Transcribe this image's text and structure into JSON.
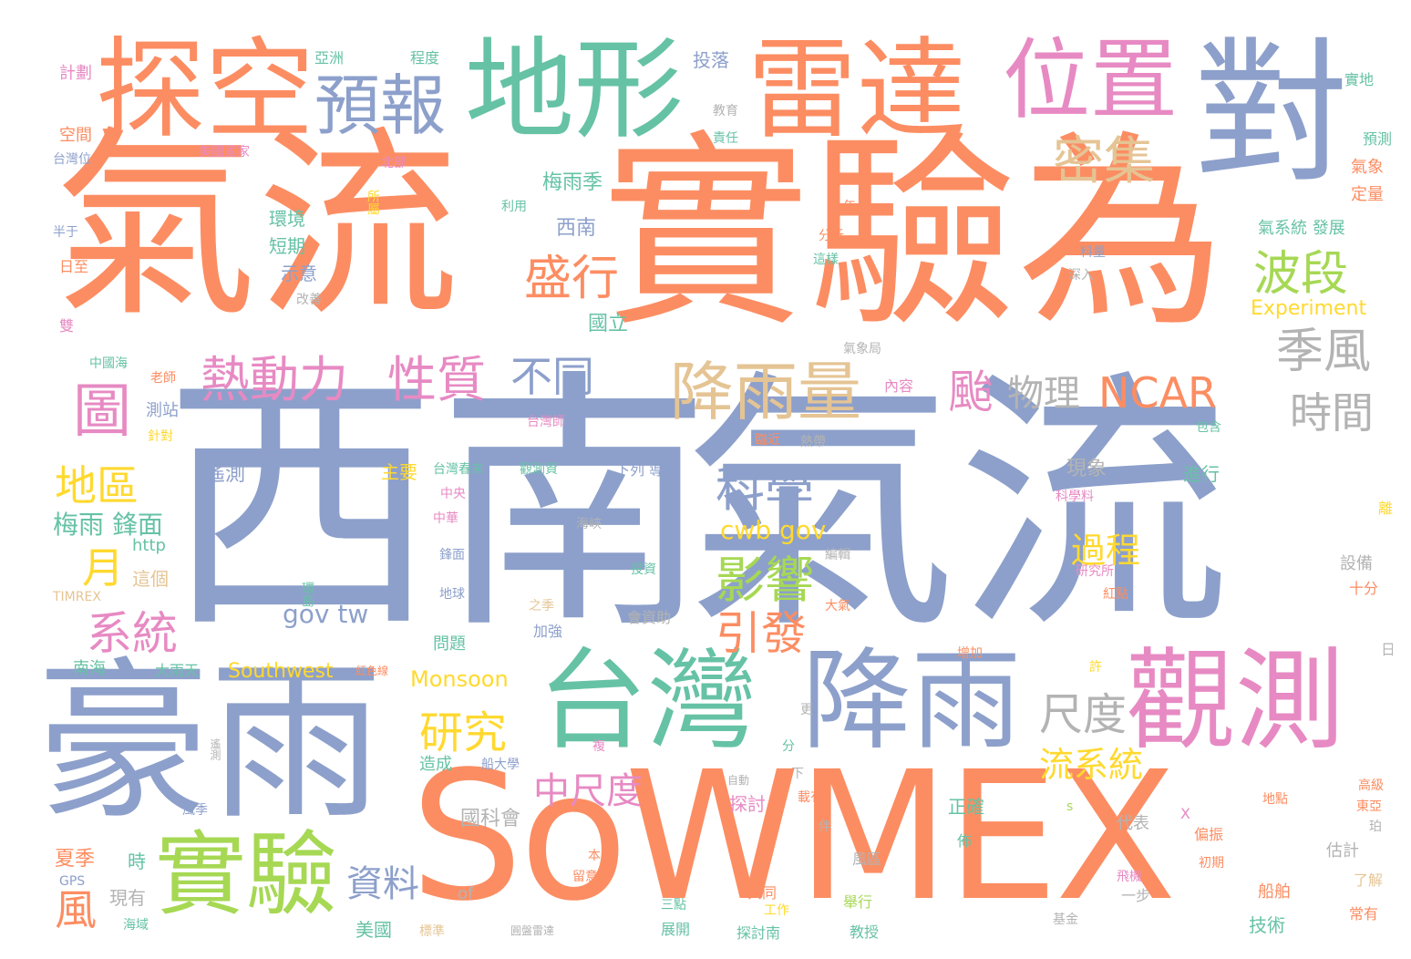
{
  "palette": {
    "orange": "#fc8d62",
    "blue": "#8da0cb",
    "green": "#66c2a5",
    "pink": "#e78ac3",
    "lime": "#a6d854",
    "yellow": "#ffd92f",
    "tan": "#e5c494",
    "gray": "#b3b3b3"
  },
  "words": {
    "xinan": "西南",
    "qiliu_big": "氣流",
    "qiliu_top": "氣流",
    "shiyan_wei": "實驗為",
    "sowmex": "SoWMEX",
    "haoyu": "豪雨",
    "taiwan": "台灣",
    "jiangyu": "降雨",
    "guance": "觀測",
    "tankong": "探空",
    "dixing": "地形",
    "leida": "雷達",
    "weizhi": "位置",
    "dui": "對",
    "yubao": "預報",
    "miji": "密集",
    "shiyan": "實驗",
    "jiangyuliang": "降雨量",
    "redongli": "熱動力",
    "xingzhi": "性質",
    "butong": "不同",
    "shengxing": "盛行",
    "boduan": "波段",
    "jifeng": "季風",
    "tu": "圖",
    "tai": "颱",
    "wuli": "物理",
    "ncar": "NCAR",
    "shijian": "時間",
    "kexue": "科學",
    "diqu": "地區",
    "yue": "月",
    "xitong": "系統",
    "yingxiang": "影響",
    "yinfa": "引發",
    "yanjiu": "研究",
    "chidu": "尺度",
    "zhongchidu": "中尺度",
    "liuxitong": "流系統",
    "guocheng": "過程",
    "cwb_gov": "cwb gov",
    "gov_tw": "gov tw",
    "feng": "風",
    "ziliao": "資料",
    "meiyu_fengmian": "梅雨 鋒面",
    "meiyuji": "梅雨季",
    "xinan_small": "西南",
    "yaoce": "遙測",
    "zhuyao": "主要",
    "xianxiang": "現象",
    "jinxing": "進行",
    "southwest": "Southwest",
    "monsoon": "Monsoon",
    "experiment": "Experiment",
    "guokehui": "國科會",
    "zhengque": "正確",
    "tantao": "探討",
    "xiaji": "夏季",
    "meiguo": "美國",
    "jishu": "技術",
    "huanjing": "環境",
    "duanqi": "短期",
    "shiyi": "示意",
    "qixitong_fazhan": "氣系統 發展",
    "guoli": "國立",
    "jihua": "計劃",
    "yazhou": "亞洲",
    "chengdu": "程度",
    "kongjian": "空間",
    "toulao": "投落",
    "shidi": "實地",
    "yuce": "預測",
    "qixiang": "氣象",
    "dingliang": "定量",
    "ceshan": "測站",
    "nanhai": "南海",
    "dayutian": "大雨天",
    "http": "http",
    "zheige": "這個",
    "timrex": "TIMREX",
    "gps": "GPS",
    "sheбei": "設備",
    "shifen": "十分",
    "guji": "估計",
    "liaojie": "了解",
    "changyou": "常有",
    "chuanbo": "船舶",
    "pianzhen": "偏振",
    "daibiao": "代表",
    "fengqu": "風區",
    "yibu": "一步",
    "of": "of",
    "xianyou": "現有",
    "shi": "時",
    "wenti": "問題",
    "zaocheng": "造成",
    "xiabing": "下列 導致",
    "zhongyang": "中央",
    "zhonghua": "中華",
    "fengmian": "鋒面",
    "diqiu": "地球",
    "jiaqiang": "加強",
    "huiziZhu": "會資助",
    "huanqiu": "環島",
    "taiwanwei": "台灣位",
    "meiguoguojia": "美國國家",
    "beibu": "北部",
    "yushu": "飛機載",
    "jiaoyu": "教育",
    "zeren": "責任",
    "liyong": "利用",
    "suoshu": "所屬",
    "nian": "年",
    "fenxi": "分析",
    "zheyang": "這樣",
    "liangliang": "料量",
    "shenru": "深入",
    "neirong": "內容",
    "xinzeng": "新增",
    "baohan": "包含",
    "qixiangju": "氣象局",
    "laoshi": "老師",
    "zhongguohai": "中國海",
    "gaijin": "改善",
    "rizhi": "日至",
    "shuang": "雙",
    "banyu": "半于",
    "taiwanshi": "台灣師",
    "zhendui": "針對",
    "lingjin": "臨近",
    "reyu": "熱帶",
    "guancezi": "觀測資",
    "taiwanchunmo": "台灣春末",
    "zaihai": "海峽",
    "kejiyaliao": "科學料",
    "yanjiusuo": "研究所",
    "hongdian": "紅點",
    "lijie": "離",
    "zengjia": "增加",
    "xu": "許",
    "ri": "日",
    "dadian": "大氣",
    "zhiji": "之季",
    "fubian": "編輯",
    "touzi": "投資",
    "fu": "複",
    "geng": "更",
    "fen": "分",
    "xia": "下",
    "zaiyou": "載有",
    "zidong": "自動",
    "dadian2": "地點",
    "gaoji": "高級",
    "dongya": "東亞",
    "chuqi": "初期",
    "feiji": "飛機",
    "bende": "本局",
    "liuyi": "留意",
    "gongtong": "共同",
    "gongzuo": "工作",
    "sandian": "三點",
    "zhankai": "展開",
    "tantaonan": "探討南",
    "jiaoshou": "教授",
    "juxing": "舉行",
    "haiyu": "海域",
    "jijin": "基金",
    "biaozhun": "標準",
    "yuanpan": "圓盤雷達",
    "fengji": "風季",
    "taiwanfa": "台灣",
    "hongse": "紅色線",
    "yubaozhi": "預報",
    "yuanjian": "遙測",
    "s": "s",
    "x": "X",
    "bu": "佈",
    "ban": "伴",
    "shi2": "珀",
    "chuanda": "船大學"
  }
}
